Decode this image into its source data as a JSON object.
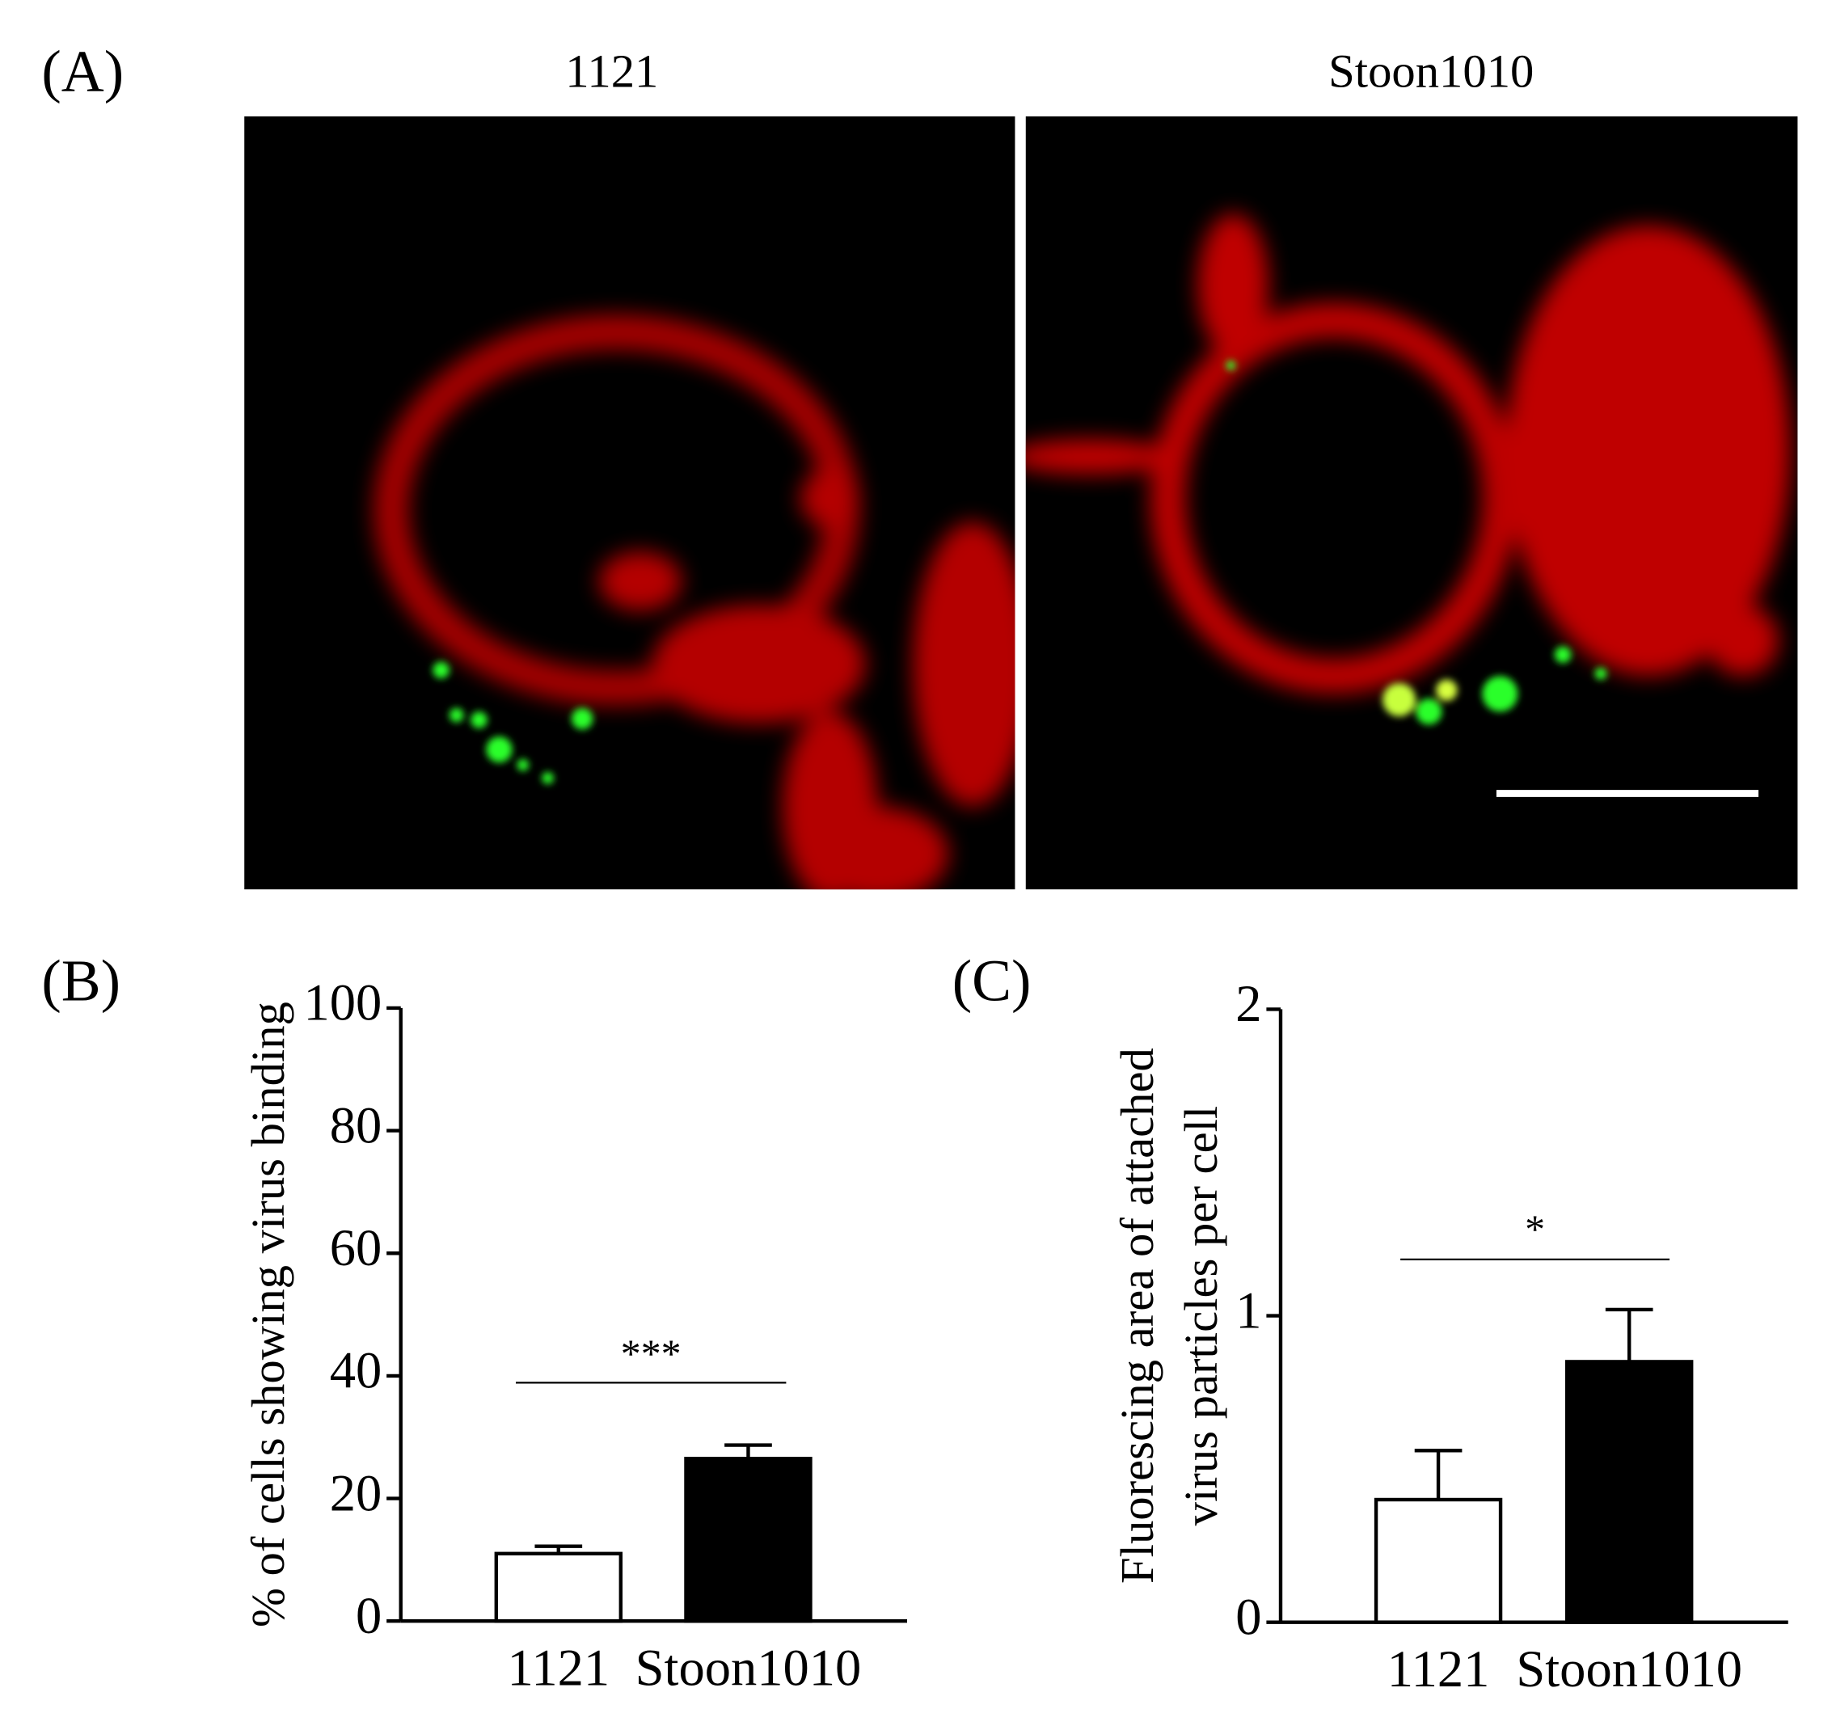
{
  "figure": {
    "panel_labels": [
      "(A)",
      "(B)",
      "(C)"
    ],
    "image_titles": [
      "1121",
      "Stoon1010"
    ]
  },
  "chart_data": [
    {
      "type": "bar",
      "ylabel": [
        "% of cells showing virus binding"
      ],
      "categories": [
        "1121",
        "Stoon1010"
      ],
      "values": [
        11,
        26.5
      ],
      "errors": [
        1.2,
        2.2
      ],
      "colors": [
        "#ffffff",
        "#000000"
      ],
      "ylim": [
        0,
        100
      ],
      "yticks": [
        0,
        20,
        40,
        60,
        80,
        100
      ],
      "annotation": "***"
    },
    {
      "type": "bar",
      "ylabel": [
        "Fluorescing area of attached",
        "virus particles per cell"
      ],
      "categories": [
        "1121",
        "Stoon1010"
      ],
      "values": [
        0.4,
        0.85
      ],
      "errors": [
        0.16,
        0.17
      ],
      "colors": [
        "#ffffff",
        "#000000"
      ],
      "ylim": [
        0,
        2
      ],
      "yticks": [
        0,
        1,
        2
      ],
      "annotation": "*"
    }
  ]
}
